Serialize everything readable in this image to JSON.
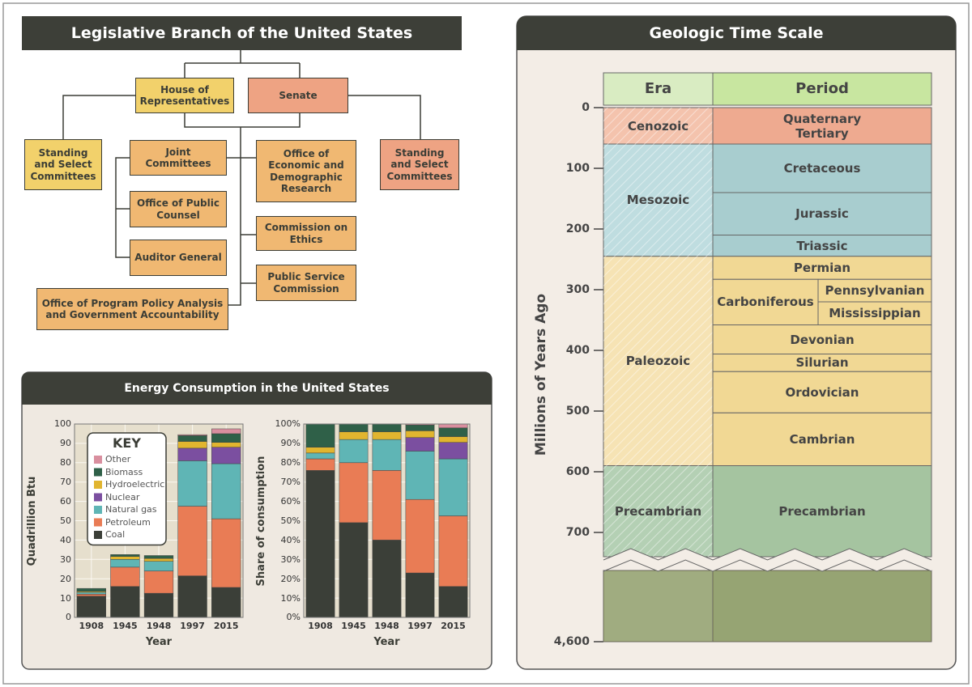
{
  "legislative": {
    "title": "Legislative Branch of the United States",
    "nodes": [
      {
        "label": "House of Representatives",
        "color": "#f2d16b"
      },
      {
        "label": "Senate",
        "color": "#eea383"
      },
      {
        "label": "Standing and Select Committees",
        "color": "#f2d16b"
      },
      {
        "label": "Joint Committees",
        "color": "#f0b872"
      },
      {
        "label": "Office of Public Counsel",
        "color": "#f0b872"
      },
      {
        "label": "Auditor General",
        "color": "#f0b872"
      },
      {
        "label": "Office of Economic and Demographic Research",
        "color": "#f0b872"
      },
      {
        "label": "Commission on Ethics",
        "color": "#f0b872"
      },
      {
        "label": "Public Service Commission",
        "color": "#f0b872"
      },
      {
        "label": "Office of Program Policy Analysis and Government Accountability",
        "color": "#f0b872"
      },
      {
        "label": "Standing and Select Committees",
        "color": "#eea383"
      }
    ]
  },
  "energy_title": "Energy Consumption in the United States",
  "chart_data": [
    {
      "type": "stacked_bar",
      "categories": [
        "1908",
        "1945",
        "1948",
        "1997",
        "2015"
      ],
      "ylim": [
        0,
        100
      ],
      "yticks": [
        0,
        10,
        20,
        30,
        40,
        50,
        60,
        70,
        80,
        90,
        100
      ],
      "y_label": "Quadrillion Btu",
      "x_label": "Year",
      "grid": true,
      "legend": "upper left",
      "legend_title": "KEY",
      "series": [
        {
          "name": "Coal",
          "color": "#3b3f38",
          "values": [
            11,
            16,
            12.5,
            21.5,
            15.5
          ]
        },
        {
          "name": "Petroleum",
          "color": "#e97c55",
          "values": [
            1,
            10,
            11.5,
            36,
            35.5
          ]
        },
        {
          "name": "Natural gas",
          "color": "#5fb5b5",
          "values": [
            1,
            4,
            5,
            23.5,
            28.5
          ]
        },
        {
          "name": "Nuclear",
          "color": "#7b4fa0",
          "values": [
            0,
            0,
            0,
            6.5,
            8.5
          ]
        },
        {
          "name": "Hydroelectric",
          "color": "#e1b52f",
          "values": [
            0.5,
            1.5,
            1.5,
            3.5,
            2.5
          ]
        },
        {
          "name": "Biomass",
          "color": "#2f6048",
          "values": [
            1.5,
            1,
            1.5,
            3,
            4.5
          ]
        },
        {
          "name": "Other",
          "color": "#d98f9f",
          "values": [
            0,
            0,
            0,
            0.5,
            2.5
          ]
        }
      ]
    },
    {
      "type": "stacked_bar",
      "categories": [
        "1908",
        "1945",
        "1948",
        "1997",
        "2015"
      ],
      "ylim": [
        0,
        100
      ],
      "yticks": [
        {
          "value": 0,
          "label": "0%"
        },
        {
          "value": 10,
          "label": "10%"
        },
        {
          "value": 20,
          "label": "20%"
        },
        {
          "value": 30,
          "label": "30%"
        },
        {
          "value": 40,
          "label": "40%"
        },
        {
          "value": 50,
          "label": "50%"
        },
        {
          "value": 60,
          "label": "60%"
        },
        {
          "value": 70,
          "label": "70%"
        },
        {
          "value": 80,
          "label": "80%"
        },
        {
          "value": 90,
          "label": "90%"
        },
        {
          "value": 100,
          "label": "100%"
        }
      ],
      "y_label": "Share of consumption",
      "x_label": "Year",
      "grid": true,
      "series": [
        {
          "color": "#3b3f38",
          "values": [
            76,
            49,
            40,
            23,
            16
          ]
        },
        {
          "color": "#e97c55",
          "values": [
            6,
            31,
            36,
            38,
            36.5
          ]
        },
        {
          "color": "#5fb5b5",
          "values": [
            3,
            12,
            16,
            25,
            29.5
          ]
        },
        {
          "color": "#7b4fa0",
          "values": [
            0,
            0,
            0,
            7,
            8.5
          ]
        },
        {
          "color": "#e1b52f",
          "values": [
            3,
            4,
            4,
            3.5,
            3
          ]
        },
        {
          "color": "#2f6048",
          "values": [
            12,
            4,
            4,
            3,
            4.5
          ]
        },
        {
          "color": "#d98f9f",
          "values": [
            0,
            0,
            0,
            0.5,
            2
          ]
        }
      ]
    }
  ],
  "geologic": {
    "title": "Geologic Time Scale",
    "y_label": "Millions of Years Ago",
    "era_header": "Era",
    "period_header": "Period",
    "ylim": [
      0,
      4600
    ],
    "axis_break": 740,
    "yticks": [
      0,
      100,
      200,
      300,
      400,
      500,
      600,
      700,
      {
        "value": 4600,
        "label": "4,600"
      }
    ],
    "eras": [
      {
        "name": "Cenozoic",
        "start": 0,
        "end": 60,
        "color": "#f4c3ad"
      },
      {
        "name": "Mesozoic",
        "start": 60,
        "end": 245,
        "color": "#bfdde0"
      },
      {
        "name": "Paleozoic",
        "start": 245,
        "end": 590,
        "color": "#f6e3b4"
      },
      {
        "name": "Precambrian",
        "start": 590,
        "end": 4600,
        "color": "#b4d0b4"
      }
    ],
    "periods": [
      {
        "name": "Quaternary\nTertiary",
        "start": 0,
        "end": 60,
        "color": "#eeaa90"
      },
      {
        "name": "Cretaceous",
        "start": 60,
        "end": 140,
        "color": "#a8cdcf"
      },
      {
        "name": "Jurassic",
        "start": 140,
        "end": 210,
        "color": "#a8cdcf"
      },
      {
        "name": "Triassic",
        "start": 210,
        "end": 245,
        "color": "#a8cdcf"
      },
      {
        "name": "Permian",
        "start": 245,
        "end": 283,
        "color": "#f1d894"
      },
      {
        "name": "Carboniferous",
        "start": 283,
        "end": 358,
        "color": "#f1d894",
        "subperiods": [
          {
            "name": "Pennsylvanian",
            "start": 283,
            "end": 320
          },
          {
            "name": "Mississippian",
            "start": 320,
            "end": 358
          }
        ]
      },
      {
        "name": "Devonian",
        "start": 358,
        "end": 406,
        "color": "#f1d894"
      },
      {
        "name": "Silurian",
        "start": 406,
        "end": 435,
        "color": "#f1d894"
      },
      {
        "name": "Ordovician",
        "start": 435,
        "end": 503,
        "color": "#f1d894"
      },
      {
        "name": "Cambrian",
        "start": 503,
        "end": 590,
        "color": "#f1d894"
      },
      {
        "name": "Precambrian",
        "start": 590,
        "end": 4600,
        "color": "#a5c4a0"
      }
    ]
  }
}
